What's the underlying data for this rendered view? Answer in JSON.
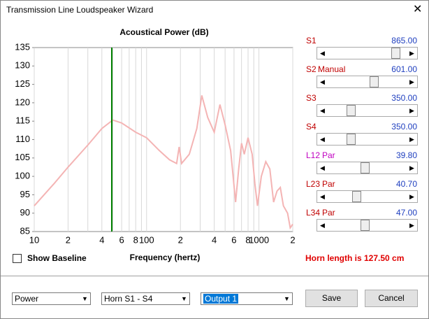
{
  "window": {
    "title": "Transmission Line Loudspeaker Wizard"
  },
  "chart_data": {
    "type": "line",
    "title": "Acoustical Power (dB)",
    "x_label": "Frequency (hertz)",
    "log_x": true,
    "xlim": [
      10,
      2000
    ],
    "ylim": [
      85,
      135
    ],
    "xticks": [
      10,
      {
        "value": 20,
        "label": "2"
      },
      {
        "value": 40,
        "label": "4"
      },
      {
        "value": 60,
        "label": "6"
      },
      {
        "value": 80,
        "label": "8"
      },
      100,
      {
        "value": 200,
        "label": "2"
      },
      {
        "value": 400,
        "label": "4"
      },
      {
        "value": 600,
        "label": "6"
      },
      {
        "value": 800,
        "label": "8"
      },
      1000,
      {
        "value": 2000,
        "label": "2"
      }
    ],
    "x_minor_grid": [
      30,
      50,
      70,
      90,
      300,
      500,
      700,
      900
    ],
    "yticks": [
      85,
      90,
      95,
      100,
      105,
      110,
      115,
      120,
      125,
      130,
      135
    ],
    "cursor_x": 49,
    "cursor_color": "#008000",
    "x": [
      10,
      15,
      20,
      30,
      40,
      50,
      60,
      80,
      100,
      130,
      160,
      185,
      195,
      205,
      240,
      280,
      310,
      350,
      400,
      450,
      500,
      560,
      620,
      660,
      700,
      740,
      800,
      870,
      920,
      970,
      1050,
      1150,
      1250,
      1350,
      1450,
      1550,
      1650,
      1800,
      1900,
      2000
    ],
    "color": "#f4b4b4",
    "values": [
      92,
      98,
      102.5,
      108.5,
      113,
      115.3,
      114.5,
      112,
      110.5,
      107,
      104.5,
      103.5,
      108,
      103.5,
      106,
      113,
      122,
      116,
      112,
      119.5,
      114,
      107,
      93,
      102,
      109,
      106,
      110.5,
      106,
      98,
      92,
      100,
      104,
      102,
      93,
      96,
      97,
      92,
      90,
      86,
      87
    ]
  },
  "sliders": [
    {
      "label": "S1",
      "value": "865.00",
      "label_color": "#c00000"
    },
    {
      "label": "S2",
      "mode": "Manual",
      "value": "601.00",
      "label_color": "#c00000"
    },
    {
      "label": "S3",
      "value": "350.00",
      "label_color": "#c00000"
    },
    {
      "label": "S4",
      "value": "350.00",
      "label_color": "#c00000"
    },
    {
      "label": "L12",
      "mode": "Par",
      "value": "39.80",
      "label_color": "#c000c0"
    },
    {
      "label": "L23",
      "mode": "Par",
      "value": "40.70",
      "label_color": "#c00000"
    },
    {
      "label": "L34",
      "mode": "Par",
      "value": "47.00",
      "label_color": "#c00000"
    }
  ],
  "checkbox": "Show Baseline",
  "status": "Horn length is 127.50 cm",
  "dropdowns": [
    "Power",
    "Horn S1 - S4",
    "Output 1"
  ],
  "buttons": [
    "Save",
    "Cancel"
  ]
}
